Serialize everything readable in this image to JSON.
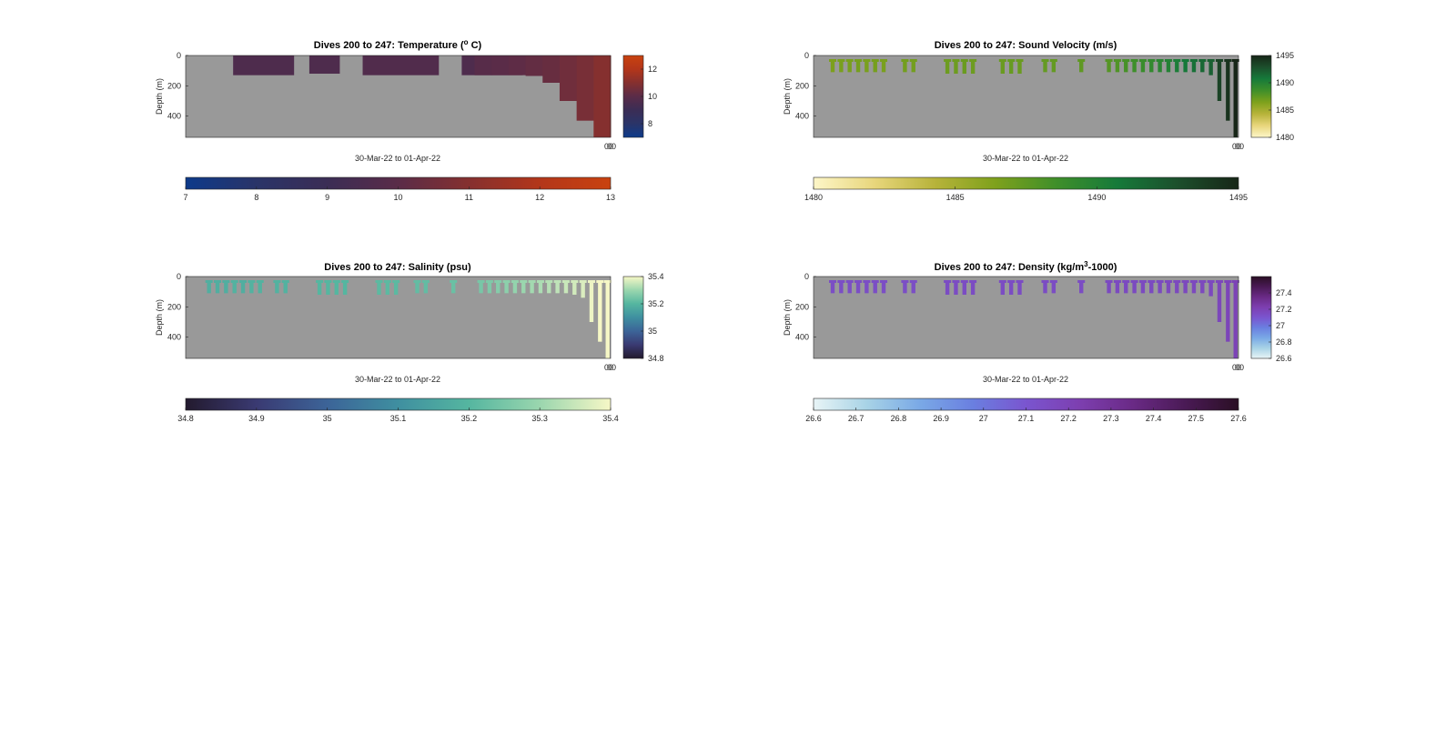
{
  "chart_data": [
    {
      "type": "heatmap",
      "title": "Dives 200 to 247: Temperature (",
      "title_sup": "o",
      "title_end": " C)",
      "ylabel": "Depth (m)",
      "xlabel": "30-Mar-22 to 01-Apr-22",
      "x_tick_label": "00",
      "y_ticks": [
        0,
        200,
        400
      ],
      "ylim": [
        0,
        540
      ],
      "clim": [
        7,
        13
      ],
      "side_cbar_ticks": [
        8,
        10,
        12
      ],
      "bottom_cbar_ticks": [
        7,
        8,
        9,
        10,
        11,
        12,
        13
      ],
      "colormap": [
        "#0d3a8a",
        "#2a3468",
        "#3b2d55",
        "#5a2c48",
        "#85302f",
        "#b3361a",
        "#c9420f"
      ],
      "background": "#999999",
      "mode": "blocks",
      "profiles": [
        {
          "dive_start": 204,
          "dive_end": 212,
          "depth": 130,
          "value": 9.6
        },
        {
          "dive_start": 214,
          "dive_end": 218,
          "depth": 120,
          "value": 9.6
        },
        {
          "dive_start": 221,
          "dive_end": 231,
          "depth": 130,
          "value": 9.7
        },
        {
          "dive_start": 234,
          "dive_end": 242,
          "depth": 130,
          "value": 9.6
        },
        {
          "dive_start": 243,
          "dive_end": 247,
          "depth": 125,
          "value": 9.7
        }
      ],
      "gradient_profiles": [
        {
          "dive": 300,
          "depth": 130,
          "value": 9.9
        },
        {
          "dive": 301,
          "depth": 130,
          "value": 10.0
        },
        {
          "dive": 302,
          "depth": 130,
          "value": 10.1
        },
        {
          "dive": 303,
          "depth": 135,
          "value": 10.2
        },
        {
          "dive": 304,
          "depth": 180,
          "value": 10.3
        },
        {
          "dive": 305,
          "depth": 300,
          "value": 10.5
        },
        {
          "dive": 306,
          "depth": 430,
          "value": 10.7
        },
        {
          "dive": 307,
          "depth": 540,
          "value": 11.0
        }
      ]
    },
    {
      "type": "heatmap",
      "title": "Dives 200 to 247: Sound Velocity (m/s)",
      "ylabel": "Depth (m)",
      "xlabel": "30-Mar-22 to 01-Apr-22",
      "x_tick_label": "00",
      "y_ticks": [
        0,
        200,
        400
      ],
      "ylim": [
        0,
        540
      ],
      "clim": [
        1480,
        1495
      ],
      "side_cbar_ticks": [
        1480,
        1485,
        1490,
        1495
      ],
      "bottom_cbar_ticks": [
        1480,
        1485,
        1490,
        1495
      ],
      "colormap": [
        "#fdf6c8",
        "#e8d67c",
        "#b7b33a",
        "#7ea11c",
        "#3f8f2a",
        "#167a3a",
        "#1c4f2c",
        "#172617"
      ],
      "background": "#999999",
      "mode": "bars",
      "bars": [
        {
          "x": 0.045,
          "depth": 110,
          "value": 1486.5
        },
        {
          "x": 0.065,
          "depth": 110,
          "value": 1486.6
        },
        {
          "x": 0.085,
          "depth": 110,
          "value": 1486.6
        },
        {
          "x": 0.105,
          "depth": 110,
          "value": 1486.7
        },
        {
          "x": 0.125,
          "depth": 110,
          "value": 1486.6
        },
        {
          "x": 0.145,
          "depth": 110,
          "value": 1486.7
        },
        {
          "x": 0.165,
          "depth": 110,
          "value": 1486.6
        },
        {
          "x": 0.215,
          "depth": 110,
          "value": 1486.8
        },
        {
          "x": 0.235,
          "depth": 110,
          "value": 1486.8
        },
        {
          "x": 0.315,
          "depth": 120,
          "value": 1487.0
        },
        {
          "x": 0.335,
          "depth": 120,
          "value": 1487.0
        },
        {
          "x": 0.355,
          "depth": 120,
          "value": 1487.1
        },
        {
          "x": 0.375,
          "depth": 120,
          "value": 1487.0
        },
        {
          "x": 0.445,
          "depth": 120,
          "value": 1487.1
        },
        {
          "x": 0.465,
          "depth": 120,
          "value": 1487.2
        },
        {
          "x": 0.485,
          "depth": 120,
          "value": 1487.1
        },
        {
          "x": 0.545,
          "depth": 110,
          "value": 1487.3
        },
        {
          "x": 0.565,
          "depth": 110,
          "value": 1487.3
        },
        {
          "x": 0.63,
          "depth": 110,
          "value": 1487.5
        },
        {
          "x": 0.695,
          "depth": 110,
          "value": 1487.8
        },
        {
          "x": 0.715,
          "depth": 110,
          "value": 1488.0
        },
        {
          "x": 0.735,
          "depth": 110,
          "value": 1488.3
        },
        {
          "x": 0.755,
          "depth": 110,
          "value": 1488.6
        },
        {
          "x": 0.775,
          "depth": 110,
          "value": 1488.9
        },
        {
          "x": 0.795,
          "depth": 110,
          "value": 1489.2
        },
        {
          "x": 0.815,
          "depth": 110,
          "value": 1489.6
        },
        {
          "x": 0.835,
          "depth": 110,
          "value": 1490.0
        },
        {
          "x": 0.855,
          "depth": 110,
          "value": 1490.4
        },
        {
          "x": 0.875,
          "depth": 110,
          "value": 1490.8
        },
        {
          "x": 0.895,
          "depth": 110,
          "value": 1491.2
        },
        {
          "x": 0.915,
          "depth": 110,
          "value": 1491.6
        },
        {
          "x": 0.935,
          "depth": 130,
          "value": 1492.0
        },
        {
          "x": 0.955,
          "depth": 300,
          "value": 1493.5
        },
        {
          "x": 0.975,
          "depth": 430,
          "value": 1494.3
        },
        {
          "x": 0.993,
          "depth": 540,
          "value": 1495.0
        }
      ]
    },
    {
      "type": "heatmap",
      "title": "Dives 200 to 247: Salinity (psu)",
      "ylabel": "Depth (m)",
      "xlabel": "30-Mar-22 to 01-Apr-22",
      "x_tick_label": "00",
      "y_ticks": [
        0,
        200,
        400
      ],
      "ylim": [
        0,
        540
      ],
      "clim": [
        34.8,
        35.4
      ],
      "side_cbar_ticks": [
        34.8,
        35,
        35.2,
        35.4
      ],
      "bottom_cbar_ticks": [
        34.8,
        34.9,
        35,
        35.1,
        35.2,
        35.3,
        35.4
      ],
      "colormap": [
        "#231a2e",
        "#3a3a72",
        "#3c6498",
        "#3f8fa0",
        "#55b6a0",
        "#9ad6ae",
        "#f6f7c6"
      ],
      "background": "#999999",
      "mode": "bars",
      "bars": [
        {
          "x": 0.055,
          "depth": 110,
          "value": 35.18
        },
        {
          "x": 0.075,
          "depth": 110,
          "value": 35.18
        },
        {
          "x": 0.095,
          "depth": 110,
          "value": 35.18
        },
        {
          "x": 0.115,
          "depth": 110,
          "value": 35.19
        },
        {
          "x": 0.135,
          "depth": 110,
          "value": 35.18
        },
        {
          "x": 0.155,
          "depth": 110,
          "value": 35.19
        },
        {
          "x": 0.175,
          "depth": 110,
          "value": 35.19
        },
        {
          "x": 0.215,
          "depth": 110,
          "value": 35.19
        },
        {
          "x": 0.235,
          "depth": 110,
          "value": 35.19
        },
        {
          "x": 0.315,
          "depth": 120,
          "value": 35.2
        },
        {
          "x": 0.335,
          "depth": 120,
          "value": 35.2
        },
        {
          "x": 0.355,
          "depth": 120,
          "value": 35.2
        },
        {
          "x": 0.375,
          "depth": 120,
          "value": 35.2
        },
        {
          "x": 0.455,
          "depth": 120,
          "value": 35.21
        },
        {
          "x": 0.475,
          "depth": 120,
          "value": 35.21
        },
        {
          "x": 0.495,
          "depth": 120,
          "value": 35.21
        },
        {
          "x": 0.545,
          "depth": 110,
          "value": 35.22
        },
        {
          "x": 0.565,
          "depth": 110,
          "value": 35.22
        },
        {
          "x": 0.63,
          "depth": 110,
          "value": 35.23
        },
        {
          "x": 0.695,
          "depth": 110,
          "value": 35.25
        },
        {
          "x": 0.715,
          "depth": 110,
          "value": 35.26
        },
        {
          "x": 0.735,
          "depth": 110,
          "value": 35.27
        },
        {
          "x": 0.755,
          "depth": 110,
          "value": 35.28
        },
        {
          "x": 0.775,
          "depth": 110,
          "value": 35.29
        },
        {
          "x": 0.795,
          "depth": 110,
          "value": 35.3
        },
        {
          "x": 0.815,
          "depth": 110,
          "value": 35.31
        },
        {
          "x": 0.835,
          "depth": 110,
          "value": 35.32
        },
        {
          "x": 0.855,
          "depth": 110,
          "value": 35.33
        },
        {
          "x": 0.875,
          "depth": 110,
          "value": 35.34
        },
        {
          "x": 0.895,
          "depth": 110,
          "value": 35.35
        },
        {
          "x": 0.915,
          "depth": 120,
          "value": 35.36
        },
        {
          "x": 0.935,
          "depth": 140,
          "value": 35.37
        },
        {
          "x": 0.955,
          "depth": 300,
          "value": 35.39
        },
        {
          "x": 0.975,
          "depth": 430,
          "value": 35.4
        },
        {
          "x": 0.993,
          "depth": 540,
          "value": 35.4
        }
      ]
    },
    {
      "type": "heatmap",
      "title": "Dives 200 to 247: Density (kg/m",
      "title_sup": "3",
      "title_end": "-1000)",
      "ylabel": "Depth (m)",
      "xlabel": "30-Mar-22 to 01-Apr-22",
      "x_tick_label": "00",
      "y_ticks": [
        0,
        200,
        400
      ],
      "ylim": [
        0,
        540
      ],
      "clim": [
        26.6,
        27.6
      ],
      "side_cbar_ticks": [
        26.6,
        26.8,
        27,
        27.2,
        27.4
      ],
      "bottom_cbar_ticks": [
        26.6,
        26.7,
        26.8,
        26.9,
        27,
        27.1,
        27.2,
        27.3,
        27.4,
        27.5,
        27.6
      ],
      "colormap": [
        "#e8f4f6",
        "#a8d3e6",
        "#7aa9e6",
        "#6a7fe0",
        "#7a55cf",
        "#7d3fb0",
        "#6a2a86",
        "#4a1a55",
        "#2a0f24"
      ],
      "background": "#999999",
      "mode": "bars",
      "bars": [
        {
          "x": 0.045,
          "depth": 110,
          "value": 27.14
        },
        {
          "x": 0.065,
          "depth": 110,
          "value": 27.14
        },
        {
          "x": 0.085,
          "depth": 110,
          "value": 27.14
        },
        {
          "x": 0.105,
          "depth": 110,
          "value": 27.14
        },
        {
          "x": 0.125,
          "depth": 110,
          "value": 27.14
        },
        {
          "x": 0.145,
          "depth": 110,
          "value": 27.14
        },
        {
          "x": 0.165,
          "depth": 110,
          "value": 27.14
        },
        {
          "x": 0.215,
          "depth": 110,
          "value": 27.14
        },
        {
          "x": 0.235,
          "depth": 110,
          "value": 27.14
        },
        {
          "x": 0.315,
          "depth": 120,
          "value": 27.15
        },
        {
          "x": 0.335,
          "depth": 120,
          "value": 27.15
        },
        {
          "x": 0.355,
          "depth": 120,
          "value": 27.15
        },
        {
          "x": 0.375,
          "depth": 120,
          "value": 27.15
        },
        {
          "x": 0.445,
          "depth": 120,
          "value": 27.15
        },
        {
          "x": 0.465,
          "depth": 120,
          "value": 27.15
        },
        {
          "x": 0.485,
          "depth": 120,
          "value": 27.15
        },
        {
          "x": 0.545,
          "depth": 110,
          "value": 27.15
        },
        {
          "x": 0.565,
          "depth": 110,
          "value": 27.15
        },
        {
          "x": 0.63,
          "depth": 110,
          "value": 27.15
        },
        {
          "x": 0.695,
          "depth": 110,
          "value": 27.16
        },
        {
          "x": 0.715,
          "depth": 110,
          "value": 27.16
        },
        {
          "x": 0.735,
          "depth": 110,
          "value": 27.16
        },
        {
          "x": 0.755,
          "depth": 110,
          "value": 27.16
        },
        {
          "x": 0.775,
          "depth": 110,
          "value": 27.16
        },
        {
          "x": 0.795,
          "depth": 110,
          "value": 27.16
        },
        {
          "x": 0.815,
          "depth": 110,
          "value": 27.16
        },
        {
          "x": 0.835,
          "depth": 110,
          "value": 27.17
        },
        {
          "x": 0.855,
          "depth": 110,
          "value": 27.17
        },
        {
          "x": 0.875,
          "depth": 110,
          "value": 27.17
        },
        {
          "x": 0.895,
          "depth": 110,
          "value": 27.17
        },
        {
          "x": 0.915,
          "depth": 110,
          "value": 27.17
        },
        {
          "x": 0.935,
          "depth": 130,
          "value": 27.17
        },
        {
          "x": 0.955,
          "depth": 300,
          "value": 27.18
        },
        {
          "x": 0.975,
          "depth": 430,
          "value": 27.19
        },
        {
          "x": 0.993,
          "depth": 540,
          "value": 27.2
        }
      ]
    }
  ]
}
